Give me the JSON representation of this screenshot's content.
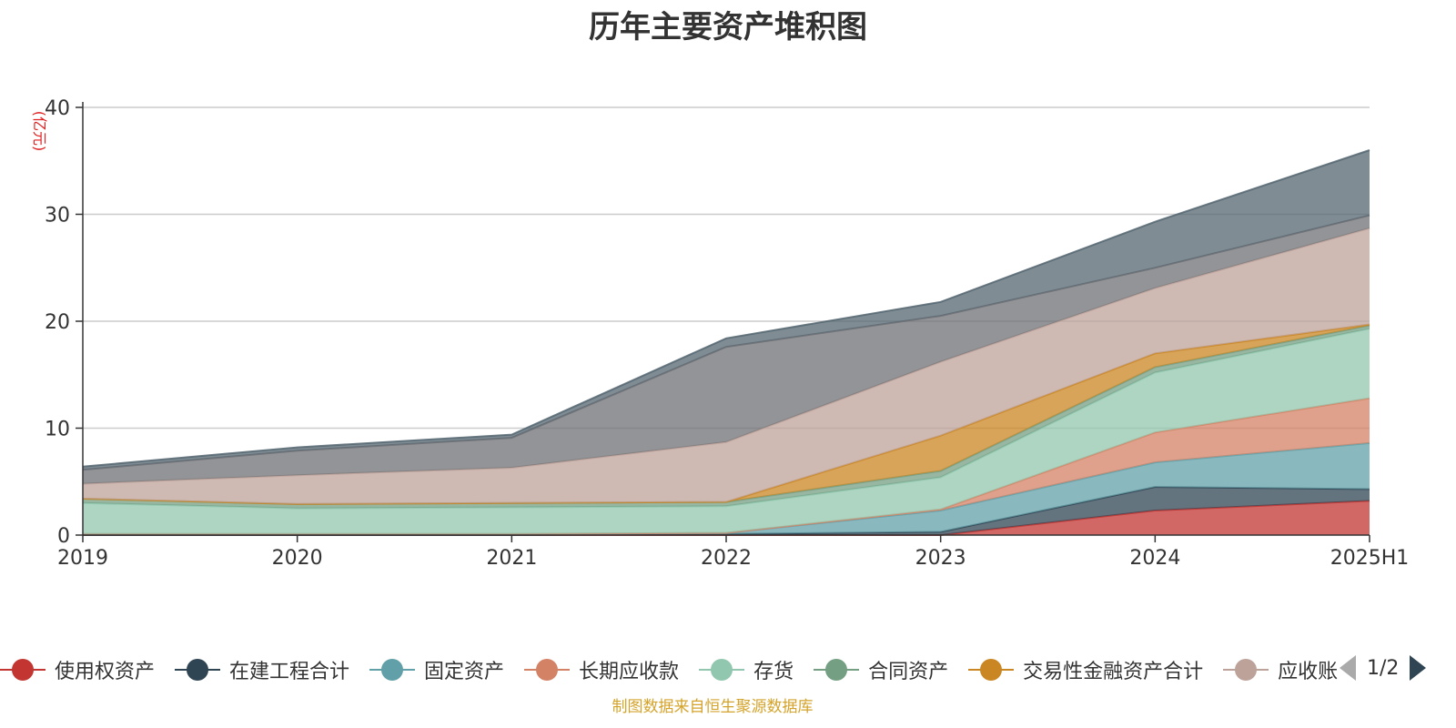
{
  "chart_data": {
    "type": "area",
    "title": "历年主要资产堆积图",
    "ylabel": "(亿元)",
    "xlabel": "",
    "ylim": [
      0,
      40
    ],
    "yticks": [
      0,
      10,
      20,
      30,
      40
    ],
    "x": [
      "2019",
      "2020",
      "2021",
      "2022",
      "2023",
      "2024",
      "2025H1"
    ],
    "stacked": true,
    "grid": true,
    "series": [
      {
        "name": "使用权资产",
        "color": "#c23531",
        "values": [
          0,
          0,
          0,
          0,
          0,
          2.3,
          3.2
        ]
      },
      {
        "name": "在建工程合计",
        "color": "#2f4554",
        "values": [
          0,
          0,
          0,
          0.1,
          0.3,
          2.2,
          1.1
        ]
      },
      {
        "name": "固定资产",
        "color": "#61a0a8",
        "values": [
          0.1,
          0.1,
          0.1,
          0.1,
          2.0,
          2.3,
          4.3
        ]
      },
      {
        "name": "长期应收款",
        "color": "#d48265",
        "values": [
          0,
          0,
          0,
          0,
          0.1,
          2.8,
          4.2
        ]
      },
      {
        "name": "存货",
        "color": "#91c7ae",
        "values": [
          2.9,
          2.4,
          2.5,
          2.5,
          3.0,
          5.6,
          6.5
        ]
      },
      {
        "name": "合同资产",
        "color": "#749f83",
        "values": [
          0.4,
          0.4,
          0.4,
          0.4,
          0.6,
          0.5,
          0.3
        ]
      },
      {
        "name": "交易性金融资产合计",
        "color": "#ca8622",
        "values": [
          0,
          0,
          0,
          0,
          3.3,
          1.3,
          0.1
        ]
      },
      {
        "name": "应收账款",
        "color": "#bda29a",
        "values": [
          1.4,
          2.7,
          3.3,
          5.6,
          6.9,
          6.1,
          9.0
        ]
      },
      {
        "name": "",
        "color": "#6e7074",
        "values": [
          1.3,
          2.3,
          2.8,
          8.9,
          4.3,
          1.9,
          1.2
        ]
      },
      {
        "name": "",
        "color": "#546570",
        "values": [
          0.3,
          0.3,
          0.3,
          0.8,
          1.3,
          4.3,
          6.1
        ]
      }
    ]
  },
  "legend": {
    "items": [
      {
        "label": "使用权资产",
        "color": "#c23531"
      },
      {
        "label": "在建工程合计",
        "color": "#2f4554"
      },
      {
        "label": "固定资产",
        "color": "#61a0a8"
      },
      {
        "label": "长期应收款",
        "color": "#d48265"
      },
      {
        "label": "存货",
        "color": "#91c7ae"
      },
      {
        "label": "合同资产",
        "color": "#749f83"
      },
      {
        "label": "交易性金融资产合计",
        "color": "#ca8622"
      },
      {
        "label": "应收账款",
        "color": "#bda29a"
      }
    ],
    "page_text": "1/2"
  },
  "source_note": "制图数据来自恒生聚源数据库"
}
